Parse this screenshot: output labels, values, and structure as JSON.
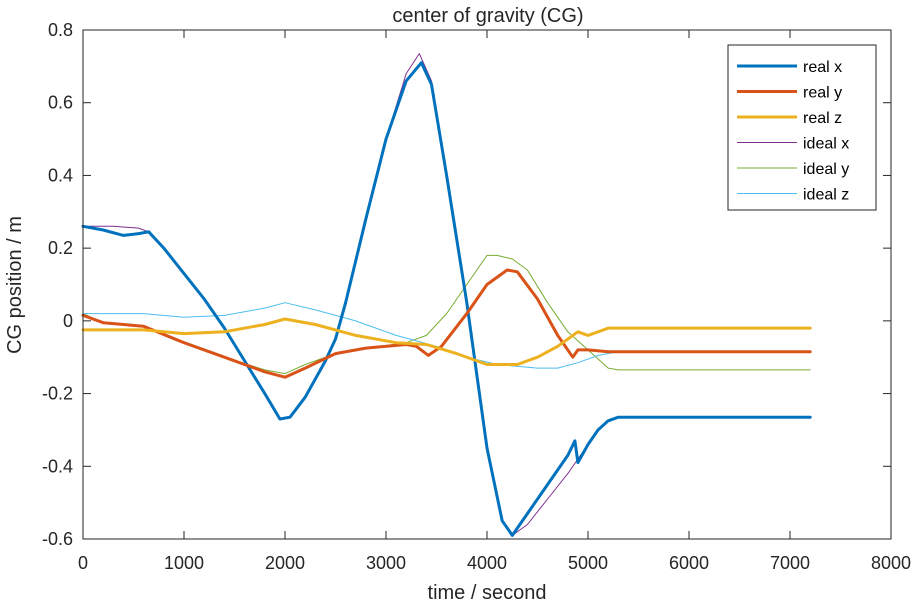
{
  "chart_data": {
    "type": "line",
    "title": "center of gravity (CG)",
    "xlabel": "time / second",
    "ylabel": "CG position / m",
    "xlim": [
      0,
      8000
    ],
    "ylim": [
      -0.6,
      0.8
    ],
    "xticks": [
      0,
      1000,
      2000,
      3000,
      4000,
      5000,
      6000,
      7000,
      8000
    ],
    "yticks": [
      -0.6,
      -0.4,
      -0.2,
      0,
      0.2,
      0.4,
      0.6,
      0.8
    ],
    "xtick_labels": [
      "0",
      "1000",
      "2000",
      "3000",
      "4000",
      "5000",
      "6000",
      "7000",
      "8000"
    ],
    "ytick_labels": [
      "-0.6",
      "-0.4",
      "-0.2",
      "0",
      "0.2",
      "0.4",
      "0.6",
      "0.8"
    ],
    "grid": false,
    "legend_position": "top-right",
    "series": [
      {
        "name": "real x",
        "color": "#0072BD",
        "line_width": "thick",
        "points": [
          [
            0,
            0.26
          ],
          [
            200,
            0.25
          ],
          [
            400,
            0.235
          ],
          [
            550,
            0.24
          ],
          [
            650,
            0.245
          ],
          [
            800,
            0.2
          ],
          [
            1000,
            0.13
          ],
          [
            1200,
            0.06
          ],
          [
            1400,
            -0.02
          ],
          [
            1600,
            -0.11
          ],
          [
            1800,
            -0.2
          ],
          [
            1950,
            -0.27
          ],
          [
            2050,
            -0.265
          ],
          [
            2200,
            -0.21
          ],
          [
            2400,
            -0.11
          ],
          [
            2500,
            -0.05
          ],
          [
            2600,
            0.05
          ],
          [
            2800,
            0.28
          ],
          [
            3000,
            0.5
          ],
          [
            3200,
            0.66
          ],
          [
            3350,
            0.71
          ],
          [
            3450,
            0.65
          ],
          [
            3600,
            0.4
          ],
          [
            3800,
            0.05
          ],
          [
            4000,
            -0.35
          ],
          [
            4150,
            -0.55
          ],
          [
            4250,
            -0.59
          ],
          [
            4400,
            -0.53
          ],
          [
            4600,
            -0.45
          ],
          [
            4800,
            -0.37
          ],
          [
            4870,
            -0.33
          ],
          [
            4900,
            -0.39
          ],
          [
            5000,
            -0.34
          ],
          [
            5100,
            -0.3
          ],
          [
            5200,
            -0.275
          ],
          [
            5300,
            -0.265
          ],
          [
            6000,
            -0.265
          ],
          [
            7200,
            -0.265
          ]
        ]
      },
      {
        "name": "real y",
        "color": "#D95319",
        "line_width": "thick",
        "points": [
          [
            0,
            0.015
          ],
          [
            200,
            -0.005
          ],
          [
            600,
            -0.015
          ],
          [
            1000,
            -0.06
          ],
          [
            1400,
            -0.1
          ],
          [
            1800,
            -0.14
          ],
          [
            2000,
            -0.155
          ],
          [
            2200,
            -0.13
          ],
          [
            2500,
            -0.09
          ],
          [
            2800,
            -0.075
          ],
          [
            3200,
            -0.065
          ],
          [
            3300,
            -0.07
          ],
          [
            3420,
            -0.095
          ],
          [
            3550,
            -0.07
          ],
          [
            3800,
            0.02
          ],
          [
            4000,
            0.1
          ],
          [
            4200,
            0.14
          ],
          [
            4300,
            0.135
          ],
          [
            4500,
            0.06
          ],
          [
            4700,
            -0.04
          ],
          [
            4850,
            -0.1
          ],
          [
            4900,
            -0.08
          ],
          [
            5000,
            -0.08
          ],
          [
            5200,
            -0.085
          ],
          [
            7200,
            -0.085
          ]
        ]
      },
      {
        "name": "real z",
        "color": "#EDB120",
        "line_width": "thick",
        "points": [
          [
            0,
            -0.025
          ],
          [
            600,
            -0.025
          ],
          [
            1000,
            -0.035
          ],
          [
            1400,
            -0.03
          ],
          [
            1800,
            -0.01
          ],
          [
            2000,
            0.005
          ],
          [
            2300,
            -0.01
          ],
          [
            2700,
            -0.04
          ],
          [
            3100,
            -0.06
          ],
          [
            3400,
            -0.065
          ],
          [
            3700,
            -0.09
          ],
          [
            4000,
            -0.12
          ],
          [
            4300,
            -0.12
          ],
          [
            4500,
            -0.1
          ],
          [
            4700,
            -0.07
          ],
          [
            4900,
            -0.03
          ],
          [
            5000,
            -0.04
          ],
          [
            5100,
            -0.03
          ],
          [
            5200,
            -0.02
          ],
          [
            7200,
            -0.02
          ]
        ]
      },
      {
        "name": "ideal x",
        "color": "#7E2F8E",
        "line_width": "thin",
        "points": [
          [
            0,
            0.26
          ],
          [
            300,
            0.26
          ],
          [
            550,
            0.255
          ],
          [
            650,
            0.245
          ],
          [
            800,
            0.2
          ],
          [
            1000,
            0.13
          ],
          [
            1200,
            0.06
          ],
          [
            1400,
            -0.02
          ],
          [
            1600,
            -0.11
          ],
          [
            1800,
            -0.2
          ],
          [
            1950,
            -0.27
          ],
          [
            2050,
            -0.265
          ],
          [
            2200,
            -0.21
          ],
          [
            2400,
            -0.11
          ],
          [
            2500,
            -0.05
          ],
          [
            2600,
            0.05
          ],
          [
            2800,
            0.28
          ],
          [
            3000,
            0.5
          ],
          [
            3200,
            0.68
          ],
          [
            3330,
            0.735
          ],
          [
            3450,
            0.66
          ],
          [
            3600,
            0.4
          ],
          [
            3800,
            0.05
          ],
          [
            4000,
            -0.35
          ],
          [
            4150,
            -0.55
          ],
          [
            4250,
            -0.59
          ],
          [
            4400,
            -0.56
          ],
          [
            4600,
            -0.49
          ],
          [
            4800,
            -0.42
          ],
          [
            4900,
            -0.38
          ],
          [
            5000,
            -0.34
          ],
          [
            5100,
            -0.3
          ],
          [
            5200,
            -0.275
          ],
          [
            5300,
            -0.265
          ],
          [
            6000,
            -0.265
          ],
          [
            7200,
            -0.265
          ]
        ]
      },
      {
        "name": "ideal y",
        "color": "#77AC30",
        "line_width": "thin",
        "points": [
          [
            0,
            0.02
          ],
          [
            200,
            -0.005
          ],
          [
            600,
            -0.015
          ],
          [
            1000,
            -0.06
          ],
          [
            1400,
            -0.1
          ],
          [
            1800,
            -0.135
          ],
          [
            2000,
            -0.145
          ],
          [
            2200,
            -0.12
          ],
          [
            2500,
            -0.09
          ],
          [
            2800,
            -0.075
          ],
          [
            3200,
            -0.06
          ],
          [
            3400,
            -0.04
          ],
          [
            3600,
            0.02
          ],
          [
            3800,
            0.1
          ],
          [
            4000,
            0.18
          ],
          [
            4100,
            0.18
          ],
          [
            4250,
            0.17
          ],
          [
            4400,
            0.14
          ],
          [
            4600,
            0.05
          ],
          [
            4800,
            -0.03
          ],
          [
            5000,
            -0.08
          ],
          [
            5200,
            -0.13
          ],
          [
            5300,
            -0.135
          ],
          [
            7200,
            -0.135
          ]
        ]
      },
      {
        "name": "ideal z",
        "color": "#4DBEEE",
        "line_width": "thin",
        "points": [
          [
            0,
            0.02
          ],
          [
            600,
            0.02
          ],
          [
            1000,
            0.01
          ],
          [
            1400,
            0.015
          ],
          [
            1800,
            0.035
          ],
          [
            2000,
            0.05
          ],
          [
            2300,
            0.03
          ],
          [
            2700,
            0.0
          ],
          [
            3100,
            -0.04
          ],
          [
            3500,
            -0.07
          ],
          [
            3800,
            -0.1
          ],
          [
            4100,
            -0.12
          ],
          [
            4500,
            -0.13
          ],
          [
            4700,
            -0.13
          ],
          [
            4900,
            -0.115
          ],
          [
            5100,
            -0.095
          ],
          [
            5300,
            -0.085
          ],
          [
            7200,
            -0.085
          ]
        ]
      }
    ]
  }
}
